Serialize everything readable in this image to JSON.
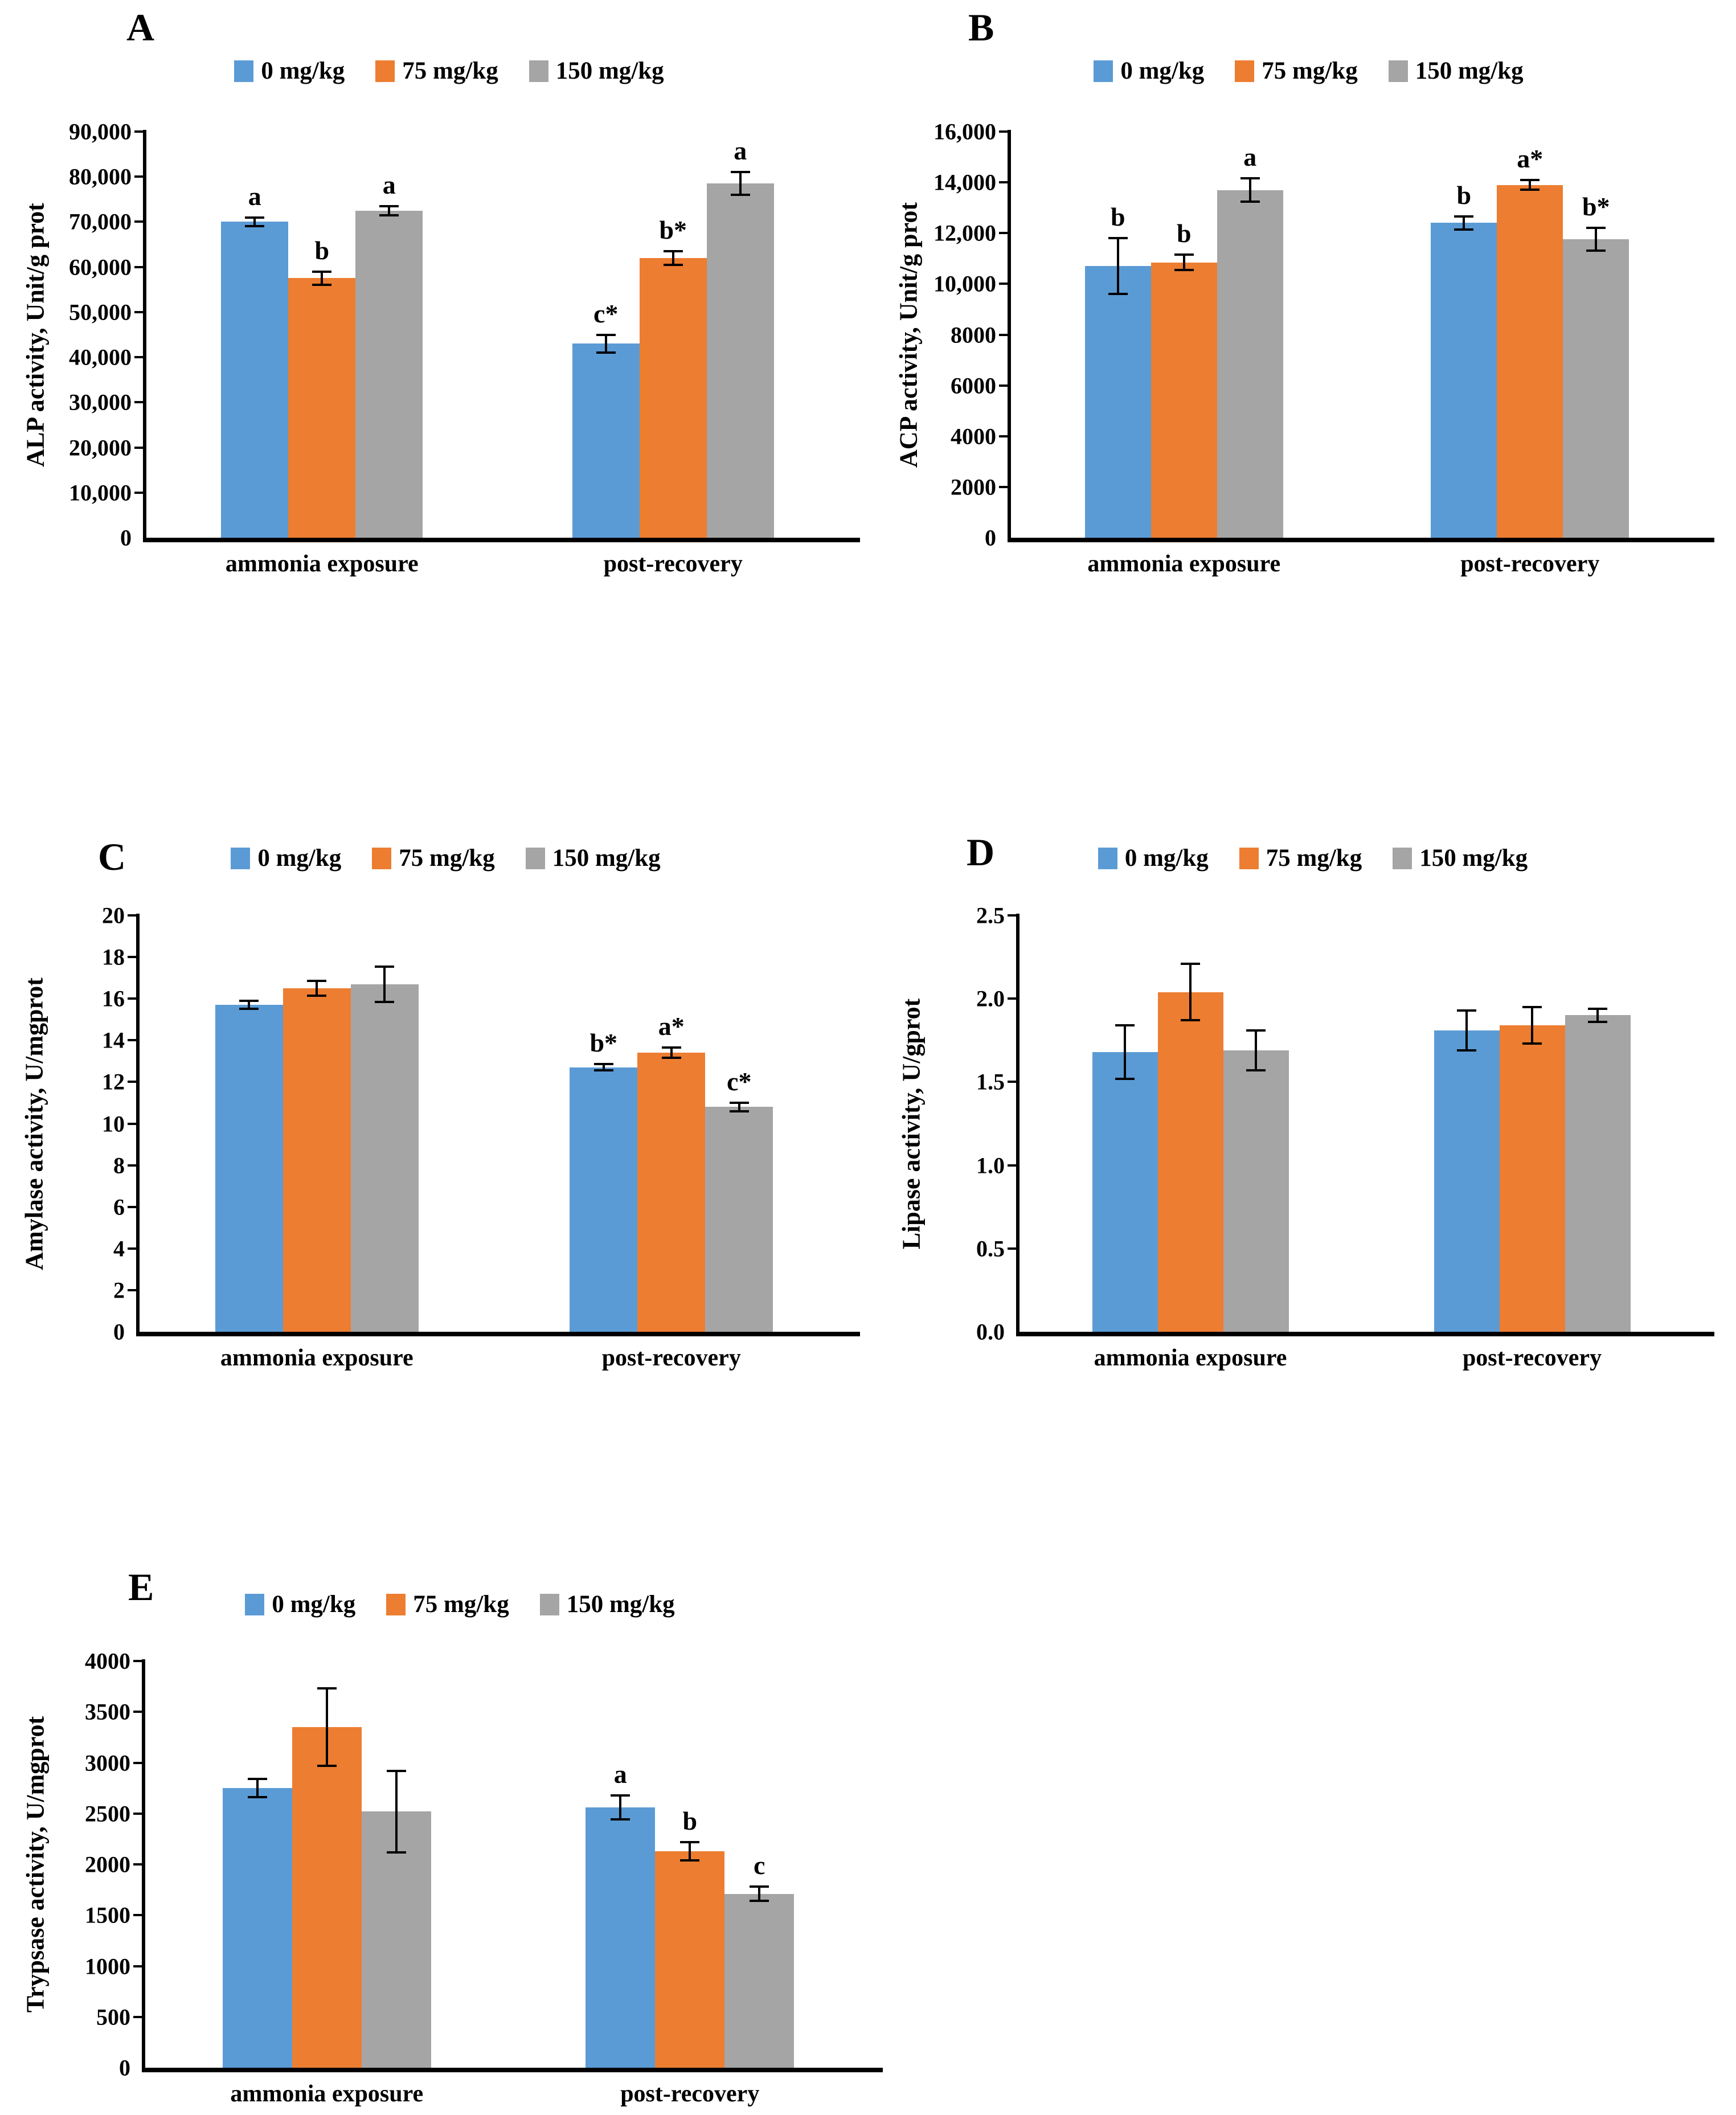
{
  "legend": {
    "items": [
      {
        "label": "0 mg/kg",
        "color": "#5B9BD5"
      },
      {
        "label": "75 mg/kg",
        "color": "#ED7D31"
      },
      {
        "label": "150 mg/kg",
        "color": "#A5A5A5"
      }
    ]
  },
  "categories": [
    "ammonia exposure",
    "post-recovery"
  ],
  "chart_data": [
    {
      "panel": "A",
      "type": "bar",
      "title": "",
      "xlabel": "",
      "ylabel": "ALP activity, Unit/g prot",
      "ylim": [
        0,
        90000
      ],
      "ytick_labels": [
        "90,000",
        "80,000",
        "70,000",
        "60,000",
        "50,000",
        "40,000",
        "30,000",
        "20,000",
        "10,000",
        "0"
      ],
      "grid": false,
      "legend_position": "top",
      "categories": [
        "ammonia exposure",
        "post-recovery"
      ],
      "series": [
        {
          "name": "0 mg/kg",
          "color": "#5B9BD5",
          "values": [
            70000,
            43000
          ],
          "errors": [
            1000,
            2000
          ],
          "sig_letters": [
            "a",
            "c*"
          ]
        },
        {
          "name": "75 mg/kg",
          "color": "#ED7D31",
          "values": [
            57500,
            62000
          ],
          "errors": [
            1500,
            1500
          ],
          "sig_letters": [
            "b",
            "b*"
          ]
        },
        {
          "name": "150 mg/kg",
          "color": "#A5A5A5",
          "values": [
            72500,
            78500
          ],
          "errors": [
            1000,
            2500
          ],
          "sig_letters": [
            "a",
            "a"
          ]
        }
      ]
    },
    {
      "panel": "B",
      "type": "bar",
      "title": "",
      "xlabel": "",
      "ylabel": "ACP activity, Unit/g prot",
      "ylim": [
        0,
        16000
      ],
      "ytick_labels": [
        "16,000",
        "14,000",
        "12,000",
        "10,000",
        "8000",
        "6000",
        "4000",
        "2000",
        "0"
      ],
      "grid": false,
      "legend_position": "top",
      "categories": [
        "ammonia exposure",
        "post-recovery"
      ],
      "series": [
        {
          "name": "0 mg/kg",
          "color": "#5B9BD5",
          "values": [
            10700,
            12400
          ],
          "errors": [
            1100,
            250
          ],
          "sig_letters": [
            "b",
            "b"
          ]
        },
        {
          "name": "75 mg/kg",
          "color": "#ED7D31",
          "values": [
            10850,
            13900
          ],
          "errors": [
            300,
            200
          ],
          "sig_letters": [
            "b",
            "a*"
          ]
        },
        {
          "name": "150 mg/kg",
          "color": "#A5A5A5",
          "values": [
            13700,
            11750
          ],
          "errors": [
            450,
            450
          ],
          "sig_letters": [
            "a",
            "b*"
          ]
        }
      ]
    },
    {
      "panel": "C",
      "type": "bar",
      "title": "",
      "xlabel": "",
      "ylabel": "Amylase activity, U/mgprot",
      "ylim": [
        0,
        20
      ],
      "ytick_labels": [
        "20",
        "18",
        "16",
        "14",
        "12",
        "10",
        "8",
        "6",
        "4",
        "2",
        "0"
      ],
      "grid": false,
      "legend_position": "top",
      "categories": [
        "ammonia exposure",
        "post-recovery"
      ],
      "series": [
        {
          "name": "0 mg/kg",
          "color": "#5B9BD5",
          "values": [
            15.7,
            12.7
          ],
          "errors": [
            0.2,
            0.15
          ],
          "sig_letters": [
            "",
            "b*"
          ]
        },
        {
          "name": "75 mg/kg",
          "color": "#ED7D31",
          "values": [
            16.5,
            13.4
          ],
          "errors": [
            0.35,
            0.25
          ],
          "sig_letters": [
            "",
            "a*"
          ]
        },
        {
          "name": "150 mg/kg",
          "color": "#A5A5A5",
          "values": [
            16.7,
            10.8
          ],
          "errors": [
            0.85,
            0.2
          ],
          "sig_letters": [
            "",
            "c*"
          ]
        }
      ]
    },
    {
      "panel": "D",
      "type": "bar",
      "title": "",
      "xlabel": "",
      "ylabel": "Lipase activity, U/gprot",
      "ylim": [
        0,
        2.5
      ],
      "ytick_labels": [
        "2.5",
        "2.0",
        "1.5",
        "1.0",
        "0.5",
        "0.0"
      ],
      "grid": false,
      "legend_position": "top",
      "categories": [
        "ammonia exposure",
        "post-recovery"
      ],
      "series": [
        {
          "name": "0 mg/kg",
          "color": "#5B9BD5",
          "values": [
            1.68,
            1.81
          ],
          "errors": [
            0.16,
            0.12
          ],
          "sig_letters": [
            "",
            ""
          ]
        },
        {
          "name": "75 mg/kg",
          "color": "#ED7D31",
          "values": [
            2.04,
            1.84
          ],
          "errors": [
            0.17,
            0.11
          ],
          "sig_letters": [
            "",
            ""
          ]
        },
        {
          "name": "150 mg/kg",
          "color": "#A5A5A5",
          "values": [
            1.69,
            1.9
          ],
          "errors": [
            0.12,
            0.04
          ],
          "sig_letters": [
            "",
            ""
          ]
        }
      ]
    },
    {
      "panel": "E",
      "type": "bar",
      "title": "",
      "xlabel": "",
      "ylabel": "Trypsase activity, U/mgprot",
      "ylim": [
        0,
        4000
      ],
      "ytick_labels": [
        "4000",
        "3500",
        "3000",
        "2500",
        "2000",
        "1500",
        "1000",
        "500",
        "0"
      ],
      "grid": false,
      "legend_position": "top",
      "categories": [
        "ammonia exposure",
        "post-recovery"
      ],
      "series": [
        {
          "name": "0 mg/kg",
          "color": "#5B9BD5",
          "values": [
            2750,
            2560
          ],
          "errors": [
            90,
            120
          ],
          "sig_letters": [
            "",
            "a"
          ]
        },
        {
          "name": "75 mg/kg",
          "color": "#ED7D31",
          "values": [
            3350,
            2130
          ],
          "errors": [
            380,
            90
          ],
          "sig_letters": [
            "",
            "b"
          ]
        },
        {
          "name": "150 mg/kg",
          "color": "#A5A5A5",
          "values": [
            2520,
            1710
          ],
          "errors": [
            400,
            70
          ],
          "sig_letters": [
            "",
            "c"
          ]
        }
      ]
    }
  ]
}
